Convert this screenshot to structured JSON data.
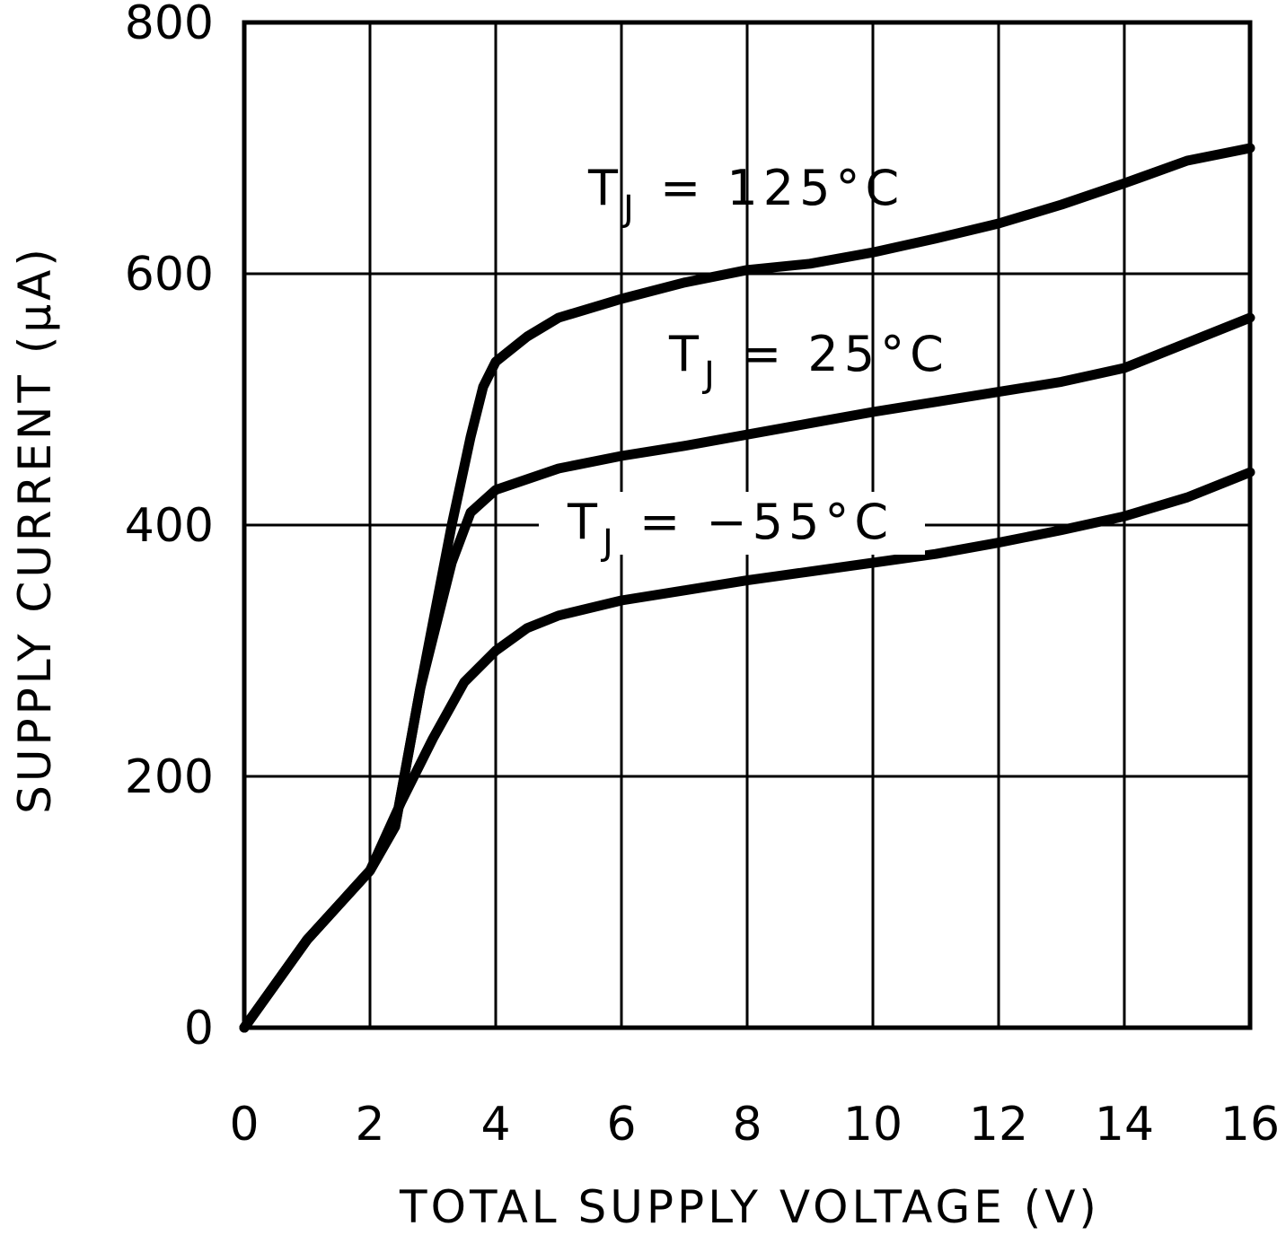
{
  "chart_data": {
    "type": "line",
    "title": "",
    "xlabel": "TOTAL SUPPLY VOLTAGE (V)",
    "ylabel": "SUPPLY CURRENT (μA)",
    "xlim": [
      0,
      16
    ],
    "ylim": [
      0,
      800
    ],
    "x_ticks": [
      0,
      2,
      4,
      6,
      8,
      10,
      12,
      14,
      16
    ],
    "y_ticks": [
      0,
      200,
      400,
      600,
      800
    ],
    "grid": true,
    "series": [
      {
        "name": "TJ = 125°C",
        "label_main": "T",
        "label_sub": "J",
        "label_rest": " = 125°C",
        "points": [
          [
            0,
            0
          ],
          [
            1,
            70
          ],
          [
            2,
            125
          ],
          [
            2.4,
            160
          ],
          [
            2.8,
            270
          ],
          [
            3.3,
            400
          ],
          [
            3.6,
            470
          ],
          [
            3.8,
            510
          ],
          [
            4,
            530
          ],
          [
            4.5,
            550
          ],
          [
            5,
            565
          ],
          [
            6,
            580
          ],
          [
            7,
            593
          ],
          [
            8,
            603
          ],
          [
            9,
            608
          ],
          [
            10,
            617
          ],
          [
            11,
            628
          ],
          [
            12,
            640
          ],
          [
            13,
            655
          ],
          [
            14,
            672
          ],
          [
            15,
            690
          ],
          [
            16,
            700
          ]
        ]
      },
      {
        "name": "TJ = 25°C",
        "label_main": "T",
        "label_sub": "J",
        "label_rest": " = 25°C",
        "points": [
          [
            0,
            0
          ],
          [
            1,
            70
          ],
          [
            2,
            125
          ],
          [
            2.4,
            160
          ],
          [
            2.8,
            270
          ],
          [
            3.3,
            370
          ],
          [
            3.6,
            410
          ],
          [
            4,
            428
          ],
          [
            5,
            445
          ],
          [
            6,
            455
          ],
          [
            7,
            463
          ],
          [
            8,
            472
          ],
          [
            9,
            481
          ],
          [
            10,
            490
          ],
          [
            11,
            498
          ],
          [
            12,
            506
          ],
          [
            13,
            514
          ],
          [
            14,
            525
          ],
          [
            15,
            545
          ],
          [
            16,
            565
          ]
        ]
      },
      {
        "name": "TJ = -55°C",
        "label_main": "T",
        "label_sub": "J",
        "label_rest": " = −55°C",
        "points": [
          [
            0,
            0
          ],
          [
            1,
            70
          ],
          [
            2,
            125
          ],
          [
            2.5,
            180
          ],
          [
            3,
            230
          ],
          [
            3.5,
            275
          ],
          [
            4,
            300
          ],
          [
            4.5,
            318
          ],
          [
            5,
            328
          ],
          [
            6,
            340
          ],
          [
            7,
            348
          ],
          [
            8,
            356
          ],
          [
            9,
            363
          ],
          [
            10,
            370
          ],
          [
            11,
            377
          ],
          [
            12,
            386
          ],
          [
            13,
            396
          ],
          [
            14,
            407
          ],
          [
            15,
            422
          ],
          [
            16,
            442
          ]
        ]
      }
    ]
  }
}
